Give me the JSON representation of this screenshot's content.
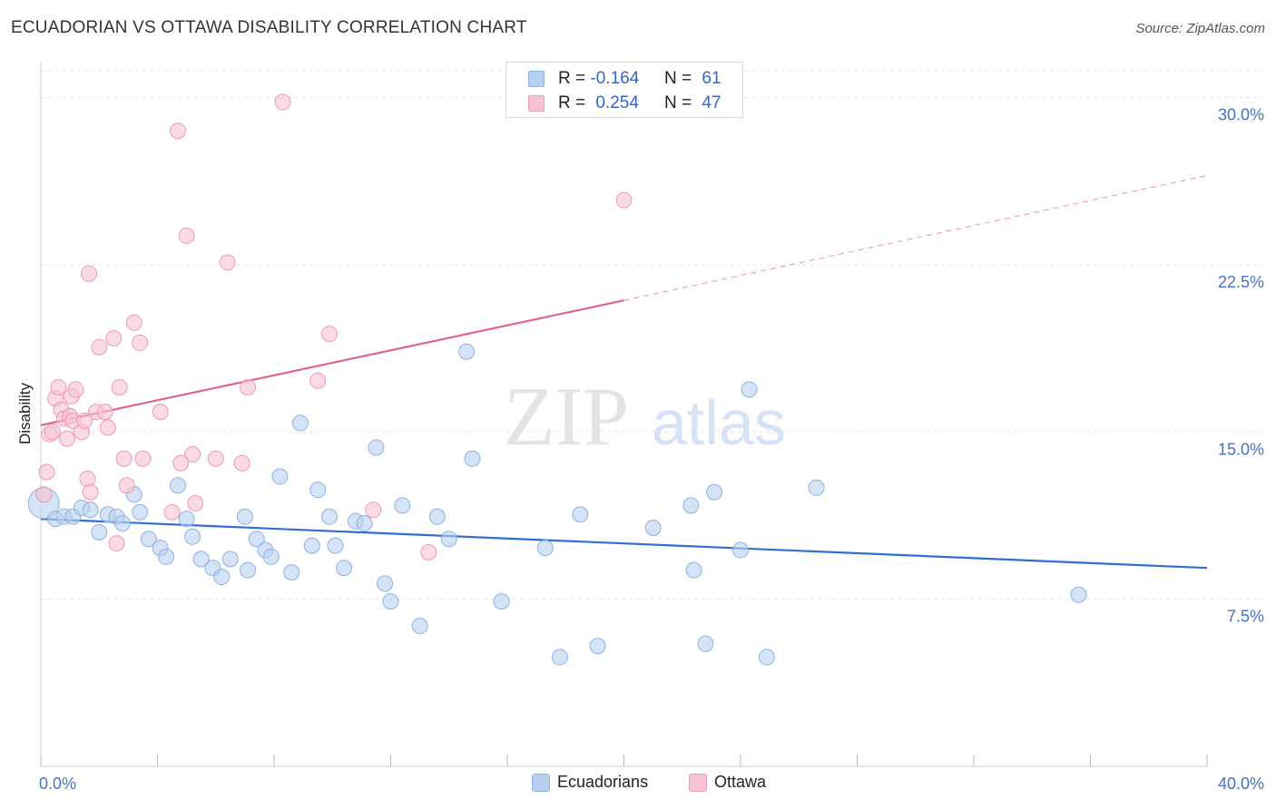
{
  "header": {
    "title": "ECUADORIAN VS OTTAWA DISABILITY CORRELATION CHART",
    "source": "Source: ZipAtlas.com"
  },
  "watermark": {
    "zip": "ZIP",
    "atlas": "atlas"
  },
  "colors": {
    "blue_fill": "#b8d0f0",
    "blue_stroke": "#8fb1e3",
    "blue_line": "#2f6fd0",
    "pink_fill": "#f7c3d2",
    "pink_stroke": "#ee9ab3",
    "pink_line": "#e0648e",
    "axis_text": "#4472c4",
    "grid": "#e0e0e0"
  },
  "legend": {
    "rows": [
      {
        "r_label": "R =",
        "r_value": "-0.164",
        "n_label": "N =",
        "n_value": "61"
      },
      {
        "r_label": "R =",
        "r_value": "0.254",
        "n_label": "N =",
        "n_value": "47"
      }
    ]
  },
  "bottom_legend": {
    "series1": "Ecuadorians",
    "series2": "Ottawa"
  },
  "chart_data": {
    "type": "scatter",
    "ylabel": "Disability",
    "xlabel": "",
    "x_tick_labels": [
      "0.0%",
      "40.0%"
    ],
    "y_tick_labels": [
      "7.5%",
      "15.0%",
      "22.5%",
      "30.0%"
    ],
    "y_ticks": [
      7.5,
      15.0,
      22.5,
      30.0
    ],
    "xlim": [
      0,
      40
    ],
    "ylim": [
      0,
      31.2
    ],
    "grid": "horizontal dashed",
    "legend_placement": "top-center",
    "series": [
      {
        "name": "Ecuadorians",
        "color": "#b8d0f0",
        "trend": {
          "x": [
            0,
            40
          ],
          "y": [
            11.1,
            8.9
          ],
          "dashed_after": null
        },
        "points": [
          [
            0.1,
            11.8
          ],
          [
            0.5,
            11.1
          ],
          [
            0.8,
            11.2
          ],
          [
            1.1,
            11.2
          ],
          [
            1.4,
            11.6
          ],
          [
            1.7,
            11.5
          ],
          [
            2.0,
            10.5
          ],
          [
            2.3,
            11.3
          ],
          [
            2.6,
            11.2
          ],
          [
            2.8,
            10.9
          ],
          [
            3.2,
            12.2
          ],
          [
            3.4,
            11.4
          ],
          [
            3.7,
            10.2
          ],
          [
            4.1,
            9.8
          ],
          [
            4.3,
            9.4
          ],
          [
            4.7,
            12.6
          ],
          [
            5.0,
            11.1
          ],
          [
            5.2,
            10.3
          ],
          [
            5.5,
            9.3
          ],
          [
            5.9,
            8.9
          ],
          [
            6.2,
            8.5
          ],
          [
            6.5,
            9.3
          ],
          [
            7.0,
            11.2
          ],
          [
            7.1,
            8.8
          ],
          [
            7.4,
            10.2
          ],
          [
            7.7,
            9.7
          ],
          [
            7.9,
            9.4
          ],
          [
            8.2,
            13.0
          ],
          [
            8.6,
            8.7
          ],
          [
            8.9,
            15.4
          ],
          [
            9.3,
            9.9
          ],
          [
            9.5,
            12.4
          ],
          [
            9.9,
            11.2
          ],
          [
            10.1,
            9.9
          ],
          [
            10.4,
            8.9
          ],
          [
            10.8,
            11.0
          ],
          [
            11.1,
            10.9
          ],
          [
            11.5,
            14.3
          ],
          [
            11.8,
            8.2
          ],
          [
            12.0,
            7.4
          ],
          [
            12.4,
            11.7
          ],
          [
            13.0,
            6.3
          ],
          [
            13.6,
            11.2
          ],
          [
            14.0,
            10.2
          ],
          [
            14.6,
            18.6
          ],
          [
            14.8,
            13.8
          ],
          [
            15.8,
            7.4
          ],
          [
            17.3,
            9.8
          ],
          [
            17.8,
            4.9
          ],
          [
            18.5,
            11.3
          ],
          [
            19.1,
            5.4
          ],
          [
            21.0,
            10.7
          ],
          [
            22.3,
            11.7
          ],
          [
            22.4,
            8.8
          ],
          [
            22.8,
            5.5
          ],
          [
            23.1,
            12.3
          ],
          [
            24.0,
            9.7
          ],
          [
            24.3,
            16.9
          ],
          [
            24.9,
            4.9
          ],
          [
            26.6,
            12.5
          ],
          [
            35.6,
            7.7
          ]
        ]
      },
      {
        "name": "Ottawa",
        "color": "#f7c3d2",
        "trend": {
          "x": [
            0,
            20
          ],
          "y": [
            15.3,
            20.9
          ],
          "dashed_after": [
            20,
            40,
            20.9,
            26.5
          ]
        },
        "points": [
          [
            0.1,
            12.2
          ],
          [
            0.2,
            13.2
          ],
          [
            0.3,
            14.9
          ],
          [
            0.4,
            15.0
          ],
          [
            0.5,
            16.5
          ],
          [
            0.6,
            17.0
          ],
          [
            0.7,
            16.0
          ],
          [
            0.8,
            15.6
          ],
          [
            0.9,
            14.7
          ],
          [
            1.0,
            15.7
          ],
          [
            1.05,
            16.6
          ],
          [
            1.1,
            15.5
          ],
          [
            1.2,
            16.9
          ],
          [
            1.4,
            15.0
          ],
          [
            1.5,
            15.5
          ],
          [
            1.6,
            12.9
          ],
          [
            1.7,
            12.3
          ],
          [
            1.65,
            22.1
          ],
          [
            1.9,
            15.9
          ],
          [
            2.0,
            18.8
          ],
          [
            2.2,
            15.9
          ],
          [
            2.3,
            15.2
          ],
          [
            2.5,
            19.2
          ],
          [
            2.6,
            10.0
          ],
          [
            2.7,
            17.0
          ],
          [
            2.85,
            13.8
          ],
          [
            2.95,
            12.6
          ],
          [
            3.2,
            19.9
          ],
          [
            3.4,
            19.0
          ],
          [
            3.5,
            13.8
          ],
          [
            4.1,
            15.9
          ],
          [
            4.5,
            11.4
          ],
          [
            4.7,
            28.5
          ],
          [
            4.8,
            13.6
          ],
          [
            5.0,
            23.8
          ],
          [
            5.2,
            14.0
          ],
          [
            5.3,
            11.8
          ],
          [
            6.0,
            13.8
          ],
          [
            6.4,
            22.6
          ],
          [
            6.9,
            13.6
          ],
          [
            7.1,
            17.0
          ],
          [
            8.3,
            29.8
          ],
          [
            9.5,
            17.3
          ],
          [
            9.9,
            19.4
          ],
          [
            11.4,
            11.5
          ],
          [
            13.3,
            9.6
          ],
          [
            20.0,
            25.4
          ]
        ]
      }
    ]
  }
}
